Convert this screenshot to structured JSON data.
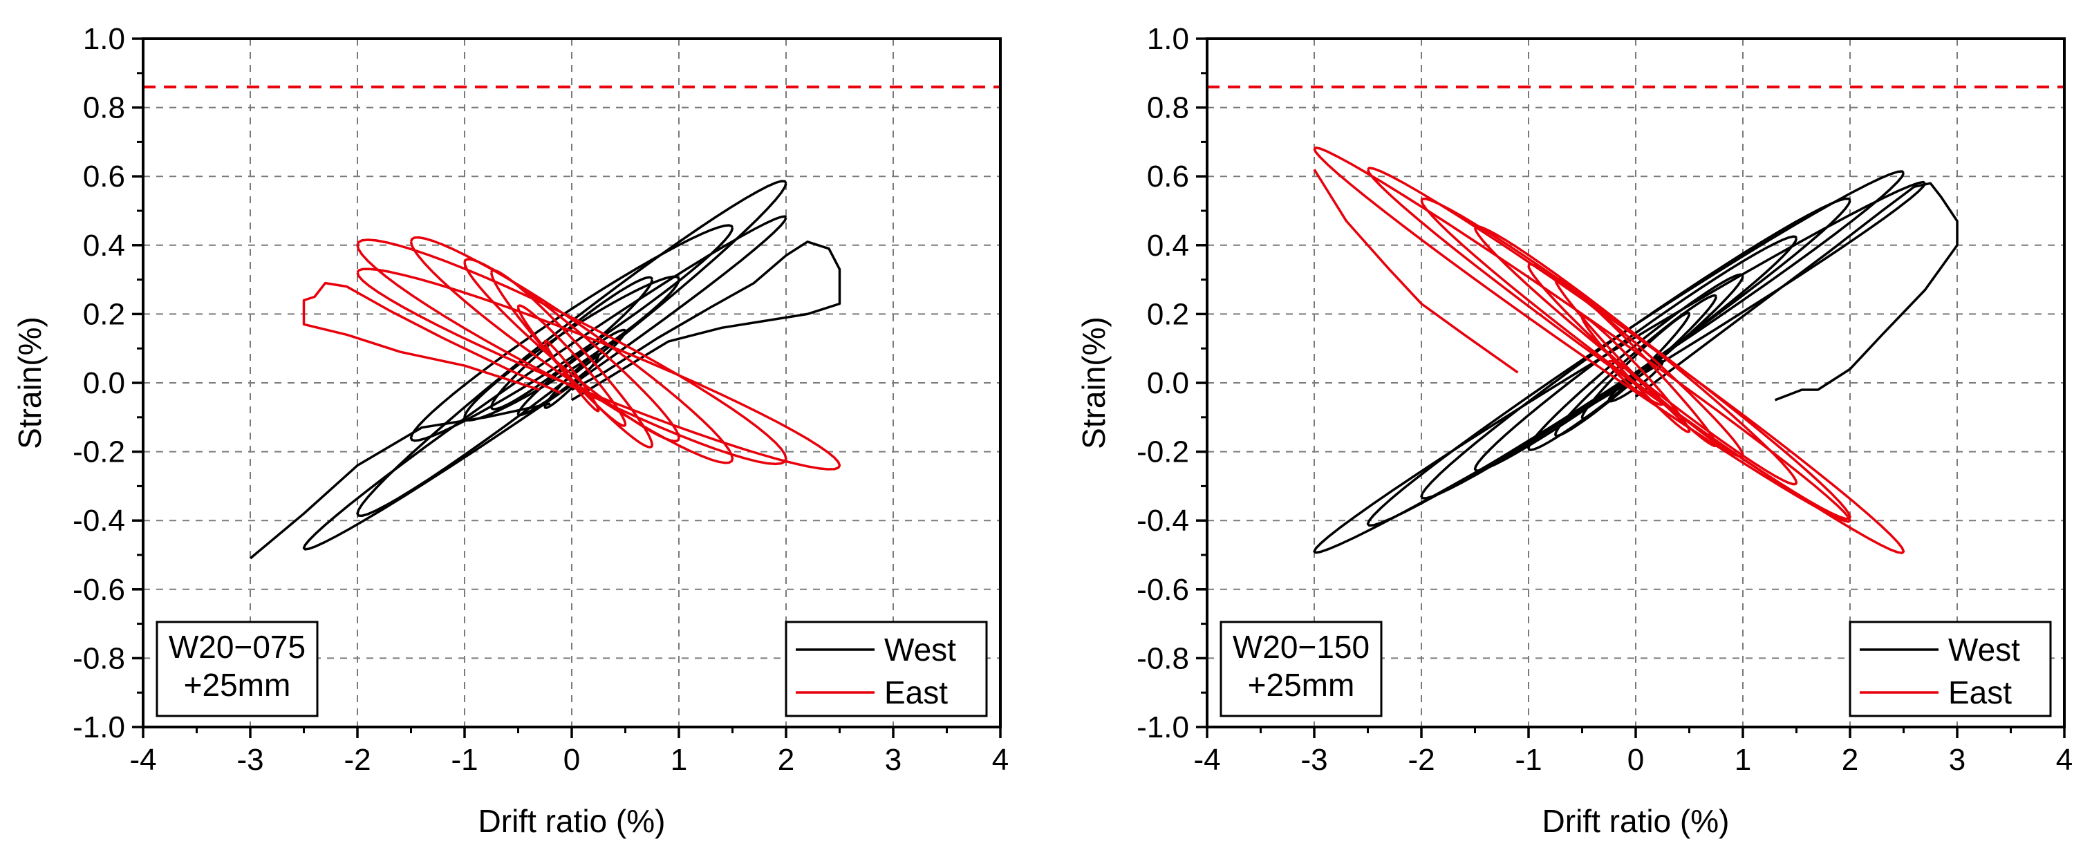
{
  "chart_data": [
    {
      "type": "line",
      "xlabel": "Drift ratio (%)",
      "ylabel": "Strain(%)",
      "xlim": [
        -4,
        4
      ],
      "ylim": [
        -1.0,
        1.0
      ],
      "xticks": [
        "-4",
        "-3",
        "-2",
        "-1",
        "0",
        "1",
        "2",
        "3",
        "4"
      ],
      "yticks": [
        "-1.0",
        "-0.8",
        "-0.6",
        "-0.4",
        "-0.2",
        "0.0",
        "0.2",
        "0.4",
        "0.6",
        "0.8",
        "1.0"
      ],
      "grid": true,
      "reference_line": {
        "y": 0.86,
        "color": "#e8000b",
        "style": "dashed"
      },
      "annotation": [
        "W20−075",
        "+25mm"
      ],
      "annotation_position": "bottom-left",
      "legend": [
        "West",
        "East"
      ],
      "legend_position": "bottom-right",
      "series": [
        {
          "name": "West",
          "color": "#000000",
          "loops": [
            {
              "peak": [
                0.25,
                0.08
              ],
              "trough": [
                -0.25,
                -0.07
              ],
              "width": 0.02
            },
            {
              "peak": [
                0.5,
                0.15
              ],
              "trough": [
                -0.5,
                -0.09
              ],
              "width": 0.03
            },
            {
              "peak": [
                0.75,
                0.3
              ],
              "trough": [
                -0.75,
                -0.07
              ],
              "width": 0.05
            },
            {
              "peak": [
                1.0,
                0.3
              ],
              "trough": [
                -1.0,
                -0.1
              ],
              "width": 0.06
            },
            {
              "peak": [
                1.5,
                0.45
              ],
              "trough": [
                -1.5,
                -0.16
              ],
              "width": 0.07
            },
            {
              "peak": [
                2.0,
                0.58
              ],
              "trough": [
                -2.0,
                -0.38
              ],
              "width": 0.08
            },
            {
              "peak": [
                2.0,
                0.48
              ],
              "trough": [
                -2.5,
                -0.48
              ],
              "width": 0.06
            }
          ],
          "excursions": [
            [
              [
                0.0,
                -0.05
              ],
              [
                0.9,
                0.12
              ],
              [
                1.4,
                0.16
              ],
              [
                1.8,
                0.18
              ],
              [
                2.2,
                0.2
              ],
              [
                2.5,
                0.23
              ],
              [
                2.5,
                0.33
              ],
              [
                2.4,
                0.39
              ],
              [
                2.2,
                0.41
              ],
              [
                2.0,
                0.37
              ],
              [
                1.7,
                0.29
              ],
              [
                1.3,
                0.22
              ],
              [
                0.8,
                0.13
              ],
              [
                0.3,
                0.03
              ],
              [
                0.0,
                -0.02
              ]
            ],
            [
              [
                -0.2,
                -0.06
              ],
              [
                -0.8,
                -0.1
              ],
              [
                -1.4,
                -0.13
              ],
              [
                -2.0,
                -0.24
              ],
              [
                -2.5,
                -0.38
              ],
              [
                -3.0,
                -0.51
              ]
            ]
          ]
        },
        {
          "name": "East",
          "color": "#e8000b",
          "loops": [
            {
              "peak": [
                -0.25,
                0.12
              ],
              "trough": [
                0.25,
                -0.08
              ],
              "width": 0.02
            },
            {
              "peak": [
                -0.5,
                0.22
              ],
              "trough": [
                0.5,
                -0.12
              ],
              "width": 0.04
            },
            {
              "peak": [
                -0.75,
                0.32
              ],
              "trough": [
                0.75,
                -0.18
              ],
              "width": 0.06
            },
            {
              "peak": [
                -1.0,
                0.35
              ],
              "trough": [
                1.0,
                -0.16
              ],
              "width": 0.07
            },
            {
              "peak": [
                -1.5,
                0.41
              ],
              "trough": [
                1.5,
                -0.22
              ],
              "width": 0.09
            },
            {
              "peak": [
                -2.0,
                0.4
              ],
              "trough": [
                2.0,
                -0.22
              ],
              "width": 0.1
            },
            {
              "peak": [
                -2.0,
                0.32
              ],
              "trough": [
                2.5,
                -0.24
              ],
              "width": 0.08
            }
          ],
          "excursions": [
            [
              [
                -0.3,
                -0.02
              ],
              [
                -1.0,
                0.05
              ],
              [
                -1.6,
                0.09
              ],
              [
                -2.1,
                0.14
              ],
              [
                -2.5,
                0.17
              ],
              [
                -2.5,
                0.24
              ],
              [
                -2.4,
                0.25
              ],
              [
                -2.3,
                0.29
              ],
              [
                -2.1,
                0.28
              ],
              [
                -1.7,
                0.21
              ],
              [
                -1.2,
                0.13
              ],
              [
                -0.6,
                0.04
              ],
              [
                -0.1,
                -0.03
              ]
            ]
          ]
        }
      ]
    },
    {
      "type": "line",
      "xlabel": "Drift ratio (%)",
      "ylabel": "Strain(%)",
      "xlim": [
        -4,
        4
      ],
      "ylim": [
        -1.0,
        1.0
      ],
      "xticks": [
        "-4",
        "-3",
        "-2",
        "-1",
        "0",
        "1",
        "2",
        "3",
        "4"
      ],
      "yticks": [
        "-1.0",
        "-0.8",
        "-0.6",
        "-0.4",
        "-0.2",
        "0.0",
        "0.2",
        "0.4",
        "0.6",
        "0.8",
        "1.0"
      ],
      "grid": true,
      "reference_line": {
        "y": 0.86,
        "color": "#e8000b",
        "style": "dashed"
      },
      "annotation": [
        "W20−150",
        "+25mm"
      ],
      "annotation_position": "bottom-left",
      "legend": [
        "West",
        "East"
      ],
      "legend_position": "bottom-right",
      "series": [
        {
          "name": "West",
          "color": "#000000",
          "loops": [
            {
              "peak": [
                0.25,
                0.06
              ],
              "trough": [
                -0.25,
                -0.05
              ],
              "width": 0.02
            },
            {
              "peak": [
                0.5,
                0.2
              ],
              "trough": [
                -0.5,
                -0.1
              ],
              "width": 0.03
            },
            {
              "peak": [
                0.75,
                0.25
              ],
              "trough": [
                -0.75,
                -0.15
              ],
              "width": 0.04
            },
            {
              "peak": [
                1.0,
                0.31
              ],
              "trough": [
                -1.0,
                -0.19
              ],
              "width": 0.05
            },
            {
              "peak": [
                1.5,
                0.42
              ],
              "trough": [
                -1.5,
                -0.25
              ],
              "width": 0.06
            },
            {
              "peak": [
                2.0,
                0.53
              ],
              "trough": [
                -2.0,
                -0.33
              ],
              "width": 0.07
            },
            {
              "peak": [
                2.5,
                0.61
              ],
              "trough": [
                -2.5,
                -0.41
              ],
              "width": 0.07
            },
            {
              "peak": [
                2.7,
                0.58
              ],
              "trough": [
                -3.0,
                -0.49
              ],
              "width": 0.06
            }
          ],
          "excursions": [
            [
              [
                0.0,
                -0.04
              ],
              [
                0.6,
                0.1
              ],
              [
                1.2,
                0.24
              ],
              [
                1.8,
                0.38
              ],
              [
                2.3,
                0.5
              ],
              [
                2.6,
                0.57
              ],
              [
                2.75,
                0.58
              ],
              [
                2.85,
                0.54
              ],
              [
                3.0,
                0.47
              ],
              [
                3.0,
                0.4
              ],
              [
                2.7,
                0.27
              ],
              [
                2.3,
                0.14
              ],
              [
                2.0,
                0.04
              ],
              [
                1.7,
                -0.02
              ],
              [
                1.55,
                -0.02
              ],
              [
                1.3,
                -0.05
              ]
            ]
          ]
        },
        {
          "name": "East",
          "color": "#e8000b",
          "loops": [
            {
              "peak": [
                -0.25,
                0.06
              ],
              "trough": [
                0.25,
                -0.06
              ],
              "width": 0.02
            },
            {
              "peak": [
                -0.5,
                0.19
              ],
              "trough": [
                0.5,
                -0.14
              ],
              "width": 0.03
            },
            {
              "peak": [
                -0.75,
                0.3
              ],
              "trough": [
                0.75,
                -0.18
              ],
              "width": 0.04
            },
            {
              "peak": [
                -1.0,
                0.34
              ],
              "trough": [
                1.0,
                -0.21
              ],
              "width": 0.05
            },
            {
              "peak": [
                -1.5,
                0.45
              ],
              "trough": [
                1.5,
                -0.29
              ],
              "width": 0.06
            },
            {
              "peak": [
                -2.0,
                0.53
              ],
              "trough": [
                2.0,
                -0.39
              ],
              "width": 0.07
            },
            {
              "peak": [
                -2.5,
                0.62
              ],
              "trough": [
                2.5,
                -0.49
              ],
              "width": 0.07
            },
            {
              "peak": [
                -3.0,
                0.68
              ],
              "trough": [
                2.0,
                -0.4
              ],
              "width": 0.06
            }
          ],
          "excursions": [
            [
              [
                -3.0,
                0.62
              ],
              [
                -2.7,
                0.47
              ],
              [
                -2.3,
                0.33
              ],
              [
                -2.0,
                0.23
              ],
              [
                -1.6,
                0.14
              ],
              [
                -1.1,
                0.03
              ]
            ]
          ]
        }
      ]
    }
  ]
}
